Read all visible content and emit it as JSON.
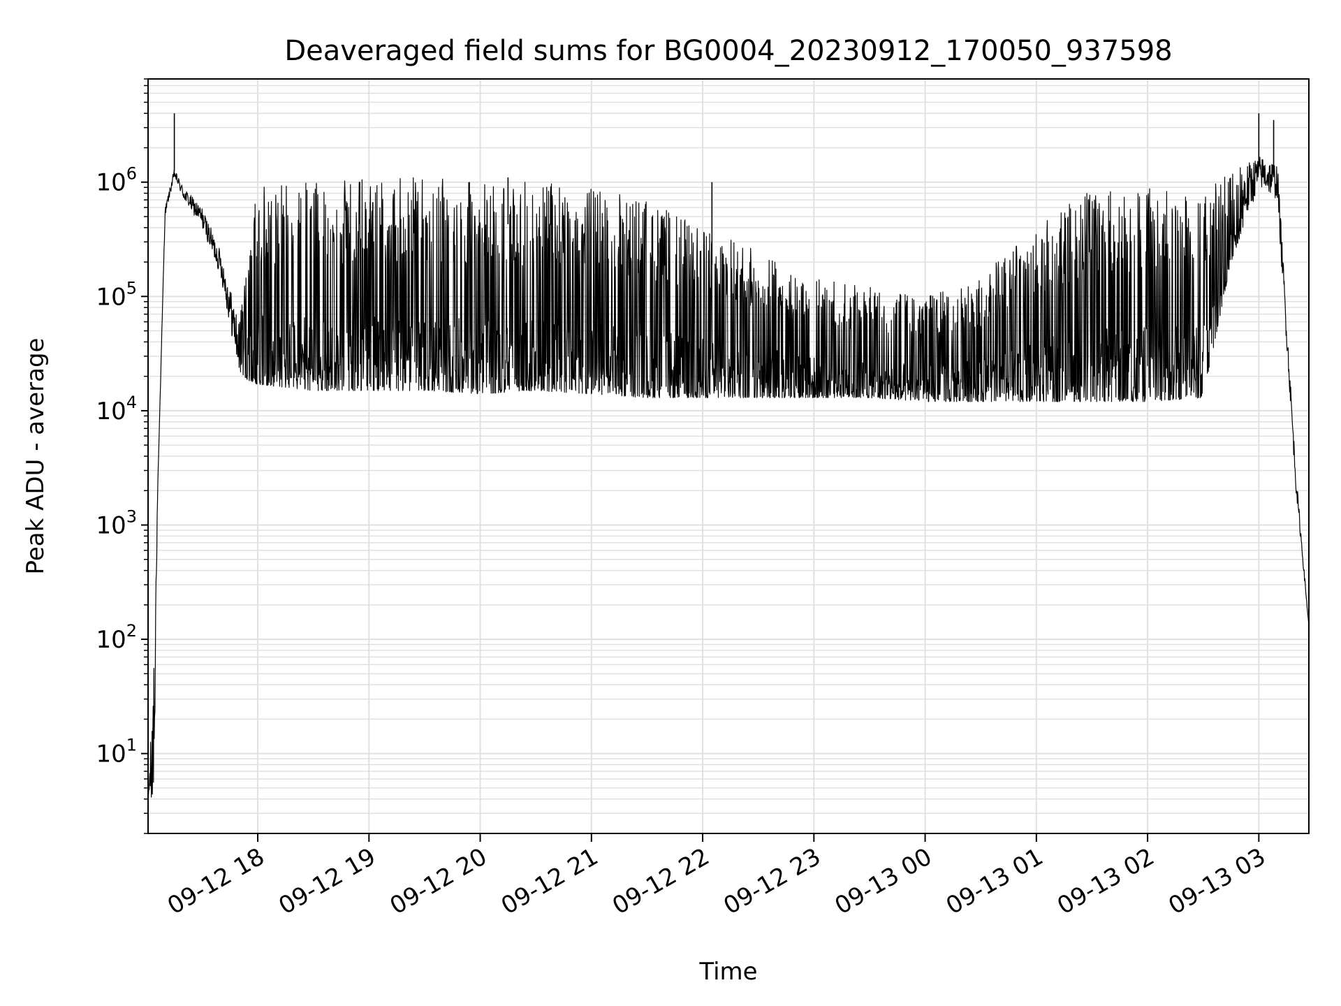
{
  "chart_data": {
    "type": "line",
    "title": "Deaveraged field sums for BG0004_20230912_170050_937598",
    "xlabel": "Time",
    "ylabel": "Peak ADU - average",
    "yscale": "log",
    "ylim": [
      2,
      8000000
    ],
    "xlim": [
      "2023-09-12 17:00:50",
      "2023-09-13 03:27:00"
    ],
    "grid": true,
    "line_color": "#000000",
    "grid_color": "#e0e0e0",
    "x_ticks": [
      {
        "time": "2023-09-12 18:00",
        "label": "09-12 18"
      },
      {
        "time": "2023-09-12 19:00",
        "label": "09-12 19"
      },
      {
        "time": "2023-09-12 20:00",
        "label": "09-12 20"
      },
      {
        "time": "2023-09-12 21:00",
        "label": "09-12 21"
      },
      {
        "time": "2023-09-12 22:00",
        "label": "09-12 22"
      },
      {
        "time": "2023-09-12 23:00",
        "label": "09-12 23"
      },
      {
        "time": "2023-09-13 00:00",
        "label": "09-13 00"
      },
      {
        "time": "2023-09-13 01:00",
        "label": "09-13 01"
      },
      {
        "time": "2023-09-13 02:00",
        "label": "09-13 02"
      },
      {
        "time": "2023-09-13 03:00",
        "label": "09-13 03"
      }
    ],
    "y_ticks": [
      {
        "value": 10,
        "base": "10",
        "exp": "1"
      },
      {
        "value": 100,
        "base": "10",
        "exp": "2"
      },
      {
        "value": 1000,
        "base": "10",
        "exp": "3"
      },
      {
        "value": 10000,
        "base": "10",
        "exp": "4"
      },
      {
        "value": 100000,
        "base": "10",
        "exp": "5"
      },
      {
        "value": 1000000,
        "base": "10",
        "exp": "6"
      }
    ],
    "series": [
      {
        "envelope": [
          {
            "time": "2023-09-12 17:00:50",
            "low": 4,
            "high": 4
          },
          {
            "time": "2023-09-12 17:04",
            "low": 4,
            "high": 60
          },
          {
            "time": "2023-09-12 17:06",
            "low": 2000,
            "high": 2000
          },
          {
            "time": "2023-09-12 17:10",
            "low": 500000,
            "high": 600000
          },
          {
            "time": "2023-09-12 17:15",
            "low": 1100000,
            "high": 1300000
          },
          {
            "time": "2023-09-12 17:20",
            "low": 700000,
            "high": 900000
          },
          {
            "time": "2023-09-12 17:30",
            "low": 400000,
            "high": 600000
          },
          {
            "time": "2023-09-12 17:40",
            "low": 150000,
            "high": 250000
          },
          {
            "time": "2023-09-12 17:50",
            "low": 20000,
            "high": 60000
          },
          {
            "time": "2023-09-12 18:00",
            "low": 17000,
            "high": 1000000
          },
          {
            "time": "2023-09-12 18:30",
            "low": 15000,
            "high": 1000000
          },
          {
            "time": "2023-09-12 19:00",
            "low": 15000,
            "high": 1100000
          },
          {
            "time": "2023-09-12 19:30",
            "low": 15000,
            "high": 1100000
          },
          {
            "time": "2023-09-12 20:00",
            "low": 14000,
            "high": 1000000
          },
          {
            "time": "2023-09-12 20:30",
            "low": 15000,
            "high": 1000000
          },
          {
            "time": "2023-09-12 21:00",
            "low": 14000,
            "high": 900000
          },
          {
            "time": "2023-09-12 21:30",
            "low": 13000,
            "high": 700000
          },
          {
            "time": "2023-09-12 22:00",
            "low": 13000,
            "high": 400000
          },
          {
            "time": "2023-09-12 22:30",
            "low": 13000,
            "high": 250000
          },
          {
            "time": "2023-09-12 23:00",
            "low": 13000,
            "high": 150000
          },
          {
            "time": "2023-09-12 23:30",
            "low": 13000,
            "high": 120000
          },
          {
            "time": "2023-09-13 00:00",
            "low": 12000,
            "high": 100000
          },
          {
            "time": "2023-09-13 00:30",
            "low": 12000,
            "high": 150000
          },
          {
            "time": "2023-09-13 01:00",
            "low": 12000,
            "high": 400000
          },
          {
            "time": "2023-09-13 01:30",
            "low": 12000,
            "high": 900000
          },
          {
            "time": "2023-09-13 02:00",
            "low": 12000,
            "high": 900000
          },
          {
            "time": "2023-09-13 02:30",
            "low": 13000,
            "high": 900000
          },
          {
            "time": "2023-09-13 02:45",
            "low": 200000,
            "high": 1200000
          },
          {
            "time": "2023-09-13 03:00",
            "low": 900000,
            "high": 1700000
          },
          {
            "time": "2023-09-13 03:10",
            "low": 700000,
            "high": 1500000
          },
          {
            "time": "2023-09-13 03:20",
            "low": 2000,
            "high": 3000
          },
          {
            "time": "2023-09-13 03:27",
            "low": 130,
            "high": 130
          }
        ],
        "spikes": [
          {
            "time": "2023-09-12 17:15",
            "value": 4000000
          },
          {
            "time": "2023-09-12 20:15",
            "value": 1100000
          },
          {
            "time": "2023-09-12 22:05",
            "value": 1000000
          },
          {
            "time": "2023-09-13 03:00",
            "value": 4000000
          },
          {
            "time": "2023-09-13 03:08",
            "value": 3500000
          }
        ]
      }
    ]
  }
}
